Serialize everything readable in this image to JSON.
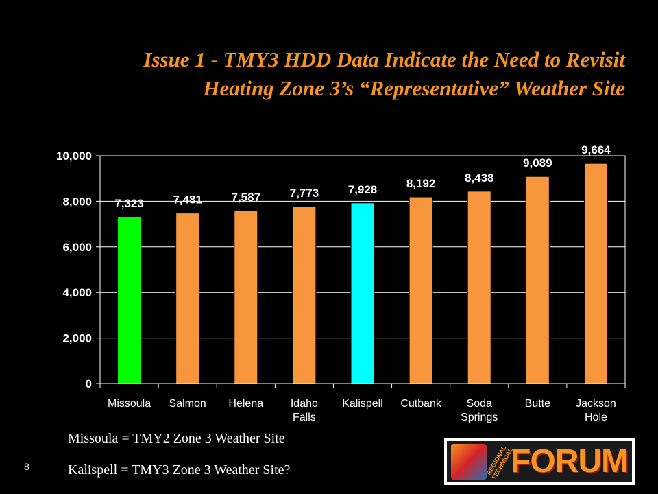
{
  "slide": {
    "title_line1": "Issue 1 - TMY3 HDD Data Indicate the Need to Revisit",
    "title_line2": "Heating Zone 3’s “Representative” Weather Site",
    "note1": "Missoula = TMY2 Zone 3 Weather Site",
    "note2": "Kalispell = TMY3 Zone 3 Weather Site?",
    "slide_number": "8",
    "logo": {
      "word": "FORUM",
      "arc_text": "REGIONAL TECHNICAL",
      "icon": "forum-logo-icon"
    }
  },
  "chart_data": {
    "type": "bar",
    "categories": [
      [
        "Missoula"
      ],
      [
        "Salmon"
      ],
      [
        "Helena"
      ],
      [
        "Idaho",
        "Falls"
      ],
      [
        "Kalispell"
      ],
      [
        "Cutbank"
      ],
      [
        "Soda",
        "Springs"
      ],
      [
        "Butte"
      ],
      [
        "Jackson",
        "Hole"
      ]
    ],
    "values": [
      7323,
      7481,
      7587,
      7773,
      7928,
      8192,
      8438,
      9089,
      9664
    ],
    "data_labels": [
      "7,323",
      "7,481",
      "7,587",
      "7,773",
      "7,928",
      "8,192",
      "8,438",
      "9,089",
      "9,664"
    ],
    "bar_colors": [
      "#00ff00",
      "#f7963c",
      "#f7963c",
      "#f7963c",
      "#00ffff",
      "#f7963c",
      "#f7963c",
      "#f7963c",
      "#f7963c"
    ],
    "ylim": [
      0,
      10000
    ],
    "yticks": [
      0,
      2000,
      4000,
      6000,
      8000,
      10000
    ],
    "ytick_labels": [
      "0",
      "2,000",
      "4,000",
      "6,000",
      "8,000",
      "10,000"
    ],
    "grid": true,
    "legend": "none",
    "colors": {
      "plot_background": "#000000",
      "grid": "#ffffff",
      "axis": "#ffffff"
    }
  }
}
